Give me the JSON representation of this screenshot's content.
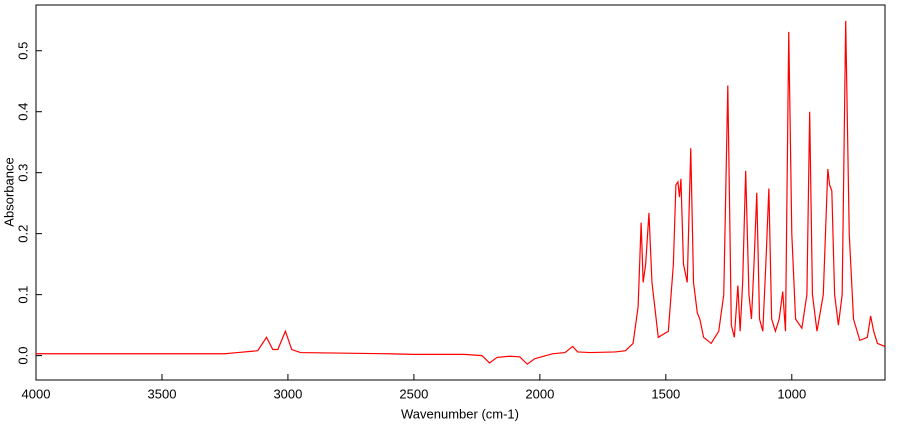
{
  "chart_data": {
    "type": "line",
    "xlabel": "Wavenumber (cm-1)",
    "ylabel": "Absorbance",
    "color": "#ff0000",
    "x": [
      4000,
      3500,
      3250,
      3200,
      3120,
      3085,
      3060,
      3040,
      3010,
      2985,
      2950,
      2600,
      2500,
      2300,
      2230,
      2200,
      2170,
      2120,
      2080,
      2050,
      2020,
      1950,
      1900,
      1870,
      1850,
      1800,
      1700,
      1660,
      1630,
      1610,
      1598,
      1590,
      1580,
      1567,
      1555,
      1530,
      1490,
      1470,
      1460,
      1452,
      1446,
      1440,
      1430,
      1415,
      1401,
      1390,
      1375,
      1365,
      1350,
      1320,
      1290,
      1270,
      1254,
      1240,
      1228,
      1214,
      1205,
      1195,
      1183,
      1170,
      1160,
      1150,
      1139,
      1128,
      1115,
      1103,
      1091,
      1080,
      1065,
      1050,
      1036,
      1025,
      1012,
      1000,
      985,
      960,
      940,
      929,
      918,
      900,
      875,
      857,
      850,
      841,
      830,
      815,
      800,
      786,
      772,
      755,
      730,
      700,
      687,
      675,
      660,
      630
    ],
    "values": [
      0.003,
      0.003,
      0.003,
      0.005,
      0.008,
      0.03,
      0.01,
      0.01,
      0.04,
      0.01,
      0.005,
      0.003,
      0.002,
      0.002,
      0,
      -0.012,
      -0.003,
      -0.001,
      -0.002,
      -0.014,
      -0.005,
      0.003,
      0.005,
      0.015,
      0.006,
      0.005,
      0.006,
      0.008,
      0.02,
      0.08,
      0.218,
      0.12,
      0.15,
      0.234,
      0.12,
      0.03,
      0.04,
      0.15,
      0.28,
      0.285,
      0.26,
      0.29,
      0.15,
      0.12,
      0.34,
      0.12,
      0.07,
      0.06,
      0.03,
      0.02,
      0.04,
      0.1,
      0.443,
      0.05,
      0.03,
      0.115,
      0.04,
      0.12,
      0.303,
      0.1,
      0.06,
      0.15,
      0.267,
      0.06,
      0.04,
      0.15,
      0.274,
      0.06,
      0.04,
      0.06,
      0.105,
      0.04,
      0.531,
      0.2,
      0.06,
      0.045,
      0.1,
      0.4,
      0.1,
      0.04,
      0.1,
      0.306,
      0.28,
      0.27,
      0.1,
      0.05,
      0.1,
      0.549,
      0.2,
      0.06,
      0.025,
      0.03,
      0.065,
      0.04,
      0.02,
      0.015
    ],
    "xlim": [
      4000,
      630
    ],
    "ylim": [
      -0.04,
      0.575
    ],
    "xticks": [
      4000,
      3500,
      3000,
      2500,
      2000,
      1500,
      1000
    ],
    "yticks": [
      {
        "value": 0,
        "label": "0.0"
      },
      0.1,
      0.2,
      0.3,
      0.4,
      0.5
    ]
  }
}
